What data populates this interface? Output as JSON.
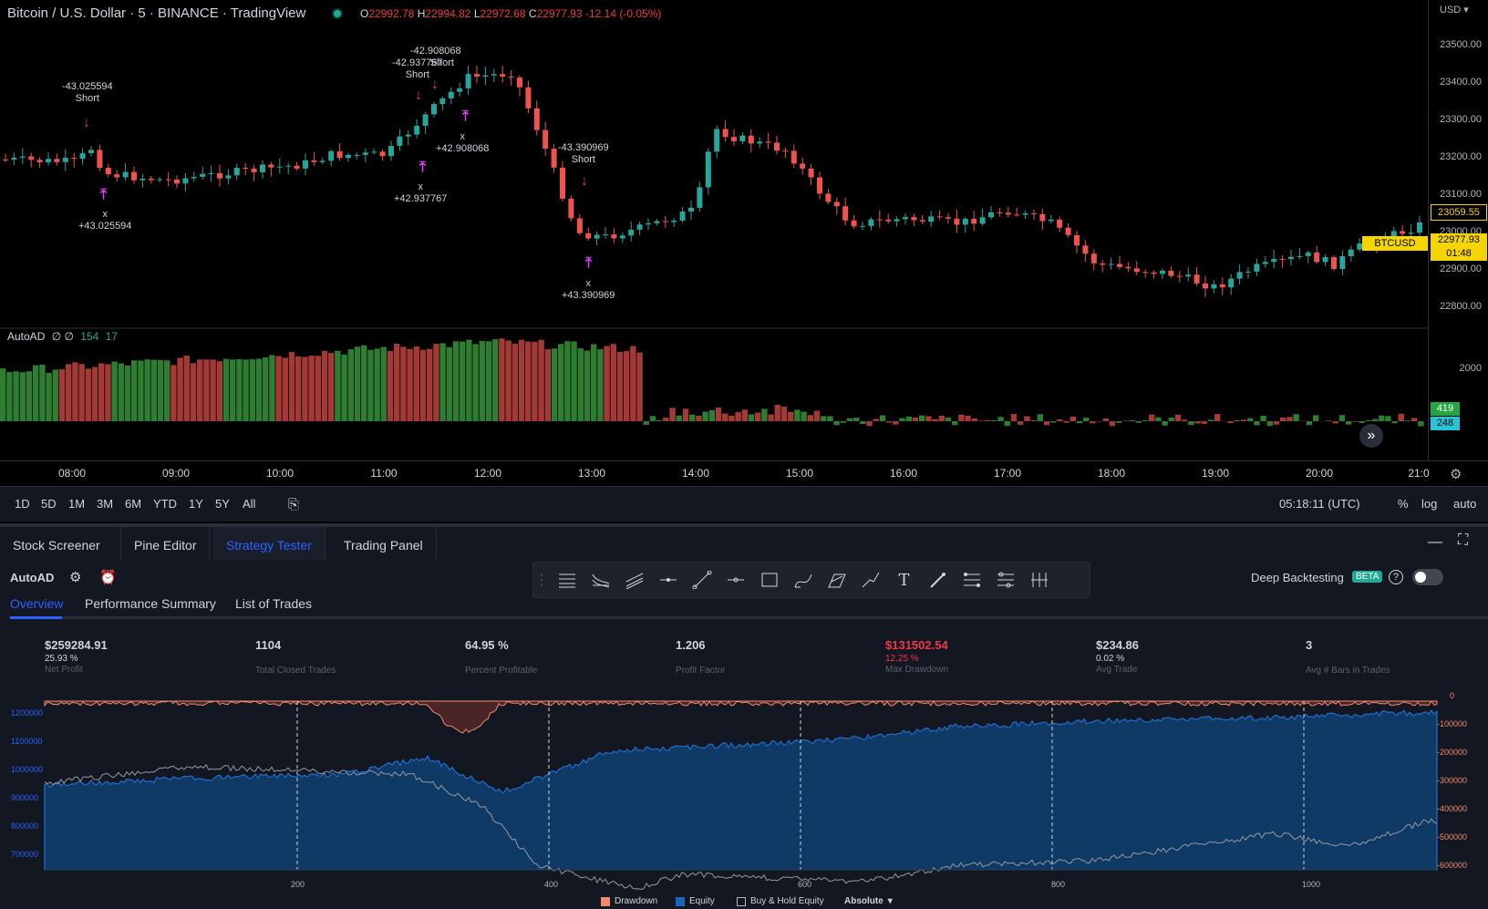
{
  "header": {
    "title": "Bitcoin / U.S. Dollar · 5 · BINANCE · TradingView",
    "ohlc": {
      "o_label": "O",
      "o": "22992.78",
      "h_label": "H",
      "h": "22994.82",
      "l_label": "L",
      "l": "22972.68",
      "c_label": "C",
      "c": "22977.93",
      "change": "-12.14 (-0.05%)"
    }
  },
  "price_axis": {
    "currency": "USD",
    "ticks": [
      "23500.00",
      "23400.00",
      "23300.00",
      "23200.00",
      "23100.00",
      "23000.00",
      "22900.00",
      "22800.00"
    ],
    "current_price": "23059.55",
    "symbol_tag": "BTCUSD",
    "last_price": "22977.93",
    "countdown": "01:48"
  },
  "annotations": [
    {
      "value": "-43.025594",
      "type": "Short"
    },
    {
      "value": "+43.025594",
      "type": "x"
    },
    {
      "value": "-42.937767",
      "type": "Short"
    },
    {
      "value": "-42.908068",
      "type": "Short"
    },
    {
      "value": "+42.937767",
      "type": "x"
    },
    {
      "value": "+42.908068",
      "type": "x"
    },
    {
      "value": "-43.390969",
      "type": "Short"
    },
    {
      "value": "+43.390969",
      "type": "x"
    }
  ],
  "indicator": {
    "name": "AutoAD",
    "vals": "∅ ∅",
    "v1": "154",
    "v2": "17",
    "axis_tick": "2000",
    "tag_green": "419",
    "tag_teal": "248"
  },
  "time_axis": [
    "08:00",
    "09:00",
    "10:00",
    "11:00",
    "12:00",
    "13:00",
    "14:00",
    "15:00",
    "16:00",
    "17:00",
    "18:00",
    "19:00",
    "20:00",
    "21:0"
  ],
  "ranges": [
    "1D",
    "5D",
    "1M",
    "3M",
    "6M",
    "YTD",
    "1Y",
    "5Y",
    "All"
  ],
  "clock": "05:18:11 (UTC)",
  "scale_opts": [
    "%",
    "log",
    "auto"
  ],
  "bottom_tabs": [
    "Stock Screener",
    "Pine Editor",
    "Strategy Tester",
    "Trading Panel"
  ],
  "strategy": {
    "name": "AutoAD",
    "deep_backtesting": "Deep Backtesting",
    "beta": "BETA",
    "subtabs": [
      "Overview",
      "Performance Summary",
      "List of Trades"
    ],
    "metrics": [
      {
        "value": "$259284.91",
        "pct": "25.93 %",
        "label": "Net Profit"
      },
      {
        "value": "1104",
        "pct": "",
        "label": "Total Closed Trades"
      },
      {
        "value": "64.95 %",
        "pct": "",
        "label": "Percent Profitable"
      },
      {
        "value": "1.206",
        "pct": "",
        "label": "Profit Factor"
      },
      {
        "value": "$131502.54",
        "pct": "12.25 %",
        "label": "Max Drawdown"
      },
      {
        "value": "$234.86",
        "pct": "0.02 %",
        "label": "Avg Trade"
      },
      {
        "value": "3",
        "pct": "",
        "label": "Avg # Bars in Trades"
      }
    ],
    "equity_left_axis": [
      "1200000",
      "1100000",
      "1000000",
      "900000",
      "800000",
      "700000"
    ],
    "equity_right_axis": [
      "0",
      "-100000",
      "-200000",
      "-300000",
      "-400000",
      "-500000",
      "-600000"
    ],
    "equity_x_axis": [
      "200",
      "400",
      "600",
      "800",
      "1000"
    ],
    "legend": [
      "Drawdown",
      "Equity",
      "Buy & Hold Equity",
      "Absolute"
    ]
  },
  "colors": {
    "up": "#26a69a",
    "down": "#ef5350",
    "accent": "#2962ff",
    "equity": "#1565c0",
    "drawdown": "#ef8a6f"
  }
}
